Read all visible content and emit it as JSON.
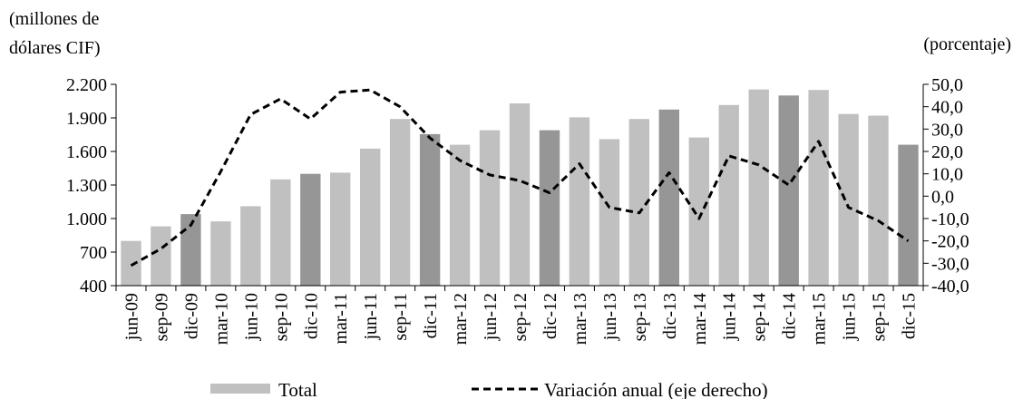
{
  "chart_data": {
    "type": "bar",
    "y_left_label_line1": "(millones de",
    "y_left_label_line2": "dólares CIF)",
    "y_right_label": "(porcentaje)",
    "categories": [
      "jun-09",
      "sep-09",
      "dic-09",
      "mar-10",
      "jun-10",
      "sep-10",
      "dic-10",
      "mar-11",
      "jun-11",
      "sep-11",
      "dic-11",
      "mar-12",
      "jun-12",
      "sep-12",
      "dic-12",
      "mar-13",
      "jun-13",
      "sep-13",
      "dic-13",
      "mar-14",
      "jun-14",
      "sep-14",
      "dic-14",
      "mar-15",
      "jun-15",
      "sep-15",
      "dic-15"
    ],
    "series": [
      {
        "name": "Total",
        "axis": "left",
        "kind": "bar",
        "values": [
          800,
          930,
          1040,
          975,
          1110,
          1350,
          1400,
          1410,
          1625,
          1890,
          1755,
          1660,
          1790,
          2030,
          1790,
          1905,
          1710,
          1890,
          1975,
          1725,
          2015,
          2155,
          2100,
          2150,
          1935,
          1920,
          1660
        ],
        "highlight_every": 4,
        "color": "#c0c0c0",
        "highlight_color": "#969696"
      },
      {
        "name": "Variación anual (eje derecho)",
        "axis": "right",
        "kind": "line",
        "style": "dashed",
        "color": "#000000",
        "values": [
          -31,
          -23.5,
          -13,
          11,
          36.5,
          43.5,
          34.5,
          46.5,
          47.5,
          40,
          26,
          16,
          9.5,
          7,
          1.5,
          14.5,
          -5,
          -7.5,
          10.5,
          -10,
          18,
          14,
          5,
          24.5,
          -5,
          -11,
          -20
        ]
      }
    ],
    "y_left": {
      "min": 400,
      "max": 2200,
      "ticks": [
        "400",
        "700",
        "1.000",
        "1.300",
        "1.600",
        "1.900",
        "2.200"
      ],
      "tick_values": [
        400,
        700,
        1000,
        1300,
        1600,
        1900,
        2200
      ]
    },
    "y_right": {
      "min": -40,
      "max": 50,
      "ticks": [
        "-40,0",
        "-30,0",
        "-20,0",
        "-10,0",
        "0,0",
        "10,0",
        "20,0",
        "30,0",
        "40,0",
        "50,0"
      ],
      "tick_values": [
        -40,
        -30,
        -20,
        -10,
        0,
        10,
        20,
        30,
        40,
        50
      ]
    },
    "legend": {
      "position": "bottom",
      "items": [
        "Total",
        "Variación anual (eje derecho)"
      ]
    },
    "grid": false
  }
}
